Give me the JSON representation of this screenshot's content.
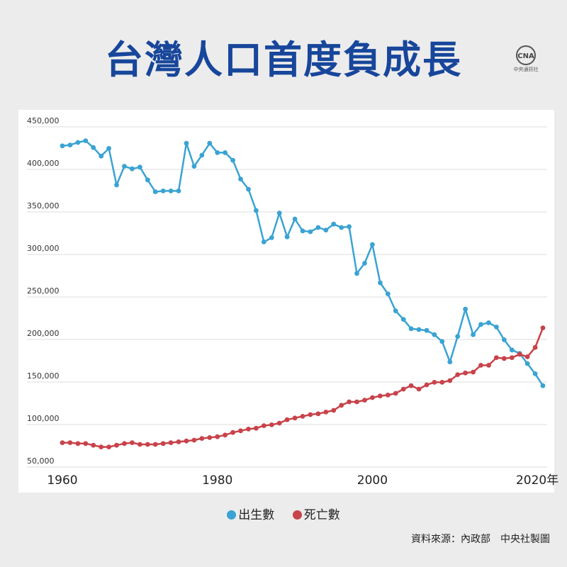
{
  "header": {
    "title": "台灣人口首度負成長",
    "logo_main": "CNA",
    "logo_sub": "中央通訊社"
  },
  "colors": {
    "birth": "#3aa3d3",
    "death": "#c8434a",
    "title": "#17469b",
    "grid": "#dedede"
  },
  "chart_data": {
    "type": "line",
    "x_labels": [
      "1960",
      "1980",
      "2000",
      "2020年"
    ],
    "x_ticks": [
      1960,
      1980,
      2000,
      2020
    ],
    "xlim": [
      1960,
      2022
    ],
    "ylim": [
      50000,
      450000
    ],
    "y_ticks": [
      50000,
      100000,
      150000,
      200000,
      250000,
      300000,
      350000,
      400000,
      450000
    ],
    "y_tick_labels": [
      "50,000",
      "100,000",
      "150,000",
      "200,000",
      "250,000",
      "300,000",
      "350,000",
      "400,000",
      "450,000"
    ],
    "grid": "horizontal",
    "legend_position": "bottom-center",
    "series": [
      {
        "name": "出生數",
        "color": "#3aa3d3",
        "x": [
          1960,
          1961,
          1962,
          1963,
          1964,
          1965,
          1966,
          1967,
          1968,
          1969,
          1970,
          1971,
          1972,
          1973,
          1974,
          1975,
          1976,
          1977,
          1978,
          1979,
          1980,
          1981,
          1982,
          1983,
          1984,
          1985,
          1986,
          1987,
          1988,
          1989,
          1990,
          1991,
          1992,
          1993,
          1994,
          1995,
          1996,
          1997,
          1998,
          1999,
          2000,
          2001,
          2002,
          2003,
          2004,
          2005,
          2006,
          2007,
          2008,
          2009,
          2010,
          2011,
          2012,
          2013,
          2014,
          2015,
          2016,
          2017,
          2018,
          2019,
          2020,
          2021,
          2022
        ],
        "values": [
          421000,
          422000,
          425000,
          427000,
          419000,
          409000,
          418000,
          375000,
          397000,
          394000,
          396000,
          381000,
          367000,
          368000,
          368000,
          368000,
          424000,
          397000,
          410000,
          424000,
          413000,
          413000,
          404000,
          382000,
          370000,
          345000,
          308000,
          313000,
          342000,
          314000,
          335000,
          321000,
          320000,
          325000,
          322000,
          329000,
          325000,
          326000,
          271000,
          283000,
          305000,
          260000,
          247000,
          227000,
          217000,
          206000,
          205000,
          204000,
          199000,
          191000,
          167000,
          197000,
          229000,
          199000,
          211000,
          213000,
          208000,
          193000,
          181000,
          177000,
          165000,
          153000,
          139000
        ]
      },
      {
        "name": "死亡數",
        "color": "#c8434a",
        "x": [
          1960,
          1961,
          1962,
          1963,
          1964,
          1965,
          1966,
          1967,
          1968,
          1969,
          1970,
          1971,
          1972,
          1973,
          1974,
          1975,
          1976,
          1977,
          1978,
          1979,
          1980,
          1981,
          1982,
          1983,
          1984,
          1985,
          1986,
          1987,
          1988,
          1989,
          1990,
          1991,
          1992,
          1993,
          1994,
          1995,
          1996,
          1997,
          1998,
          1999,
          2000,
          2001,
          2002,
          2003,
          2004,
          2005,
          2006,
          2007,
          2008,
          2009,
          2010,
          2011,
          2012,
          2013,
          2014,
          2015,
          2016,
          2017,
          2018,
          2019,
          2020,
          2021,
          2022
        ],
        "values": [
          72000,
          72000,
          71000,
          71000,
          69000,
          67000,
          67000,
          69000,
          71000,
          72000,
          70000,
          70000,
          70000,
          71000,
          72000,
          73000,
          74000,
          75000,
          77000,
          78000,
          79000,
          81000,
          84000,
          86000,
          88000,
          89000,
          92000,
          93000,
          95000,
          99000,
          101000,
          103000,
          105000,
          106000,
          108000,
          110000,
          116000,
          120000,
          120000,
          122000,
          125000,
          127000,
          128000,
          130000,
          135000,
          139000,
          135000,
          140000,
          143000,
          143000,
          145000,
          152000,
          154000,
          155000,
          163000,
          163000,
          172000,
          171000,
          172000,
          176000,
          173000,
          184000,
          207000
        ]
      }
    ]
  },
  "legend": {
    "birth_label": "出生數",
    "death_label": "死亡數"
  },
  "footer": {
    "source": "資料來源：內政部　中央社製圖"
  }
}
